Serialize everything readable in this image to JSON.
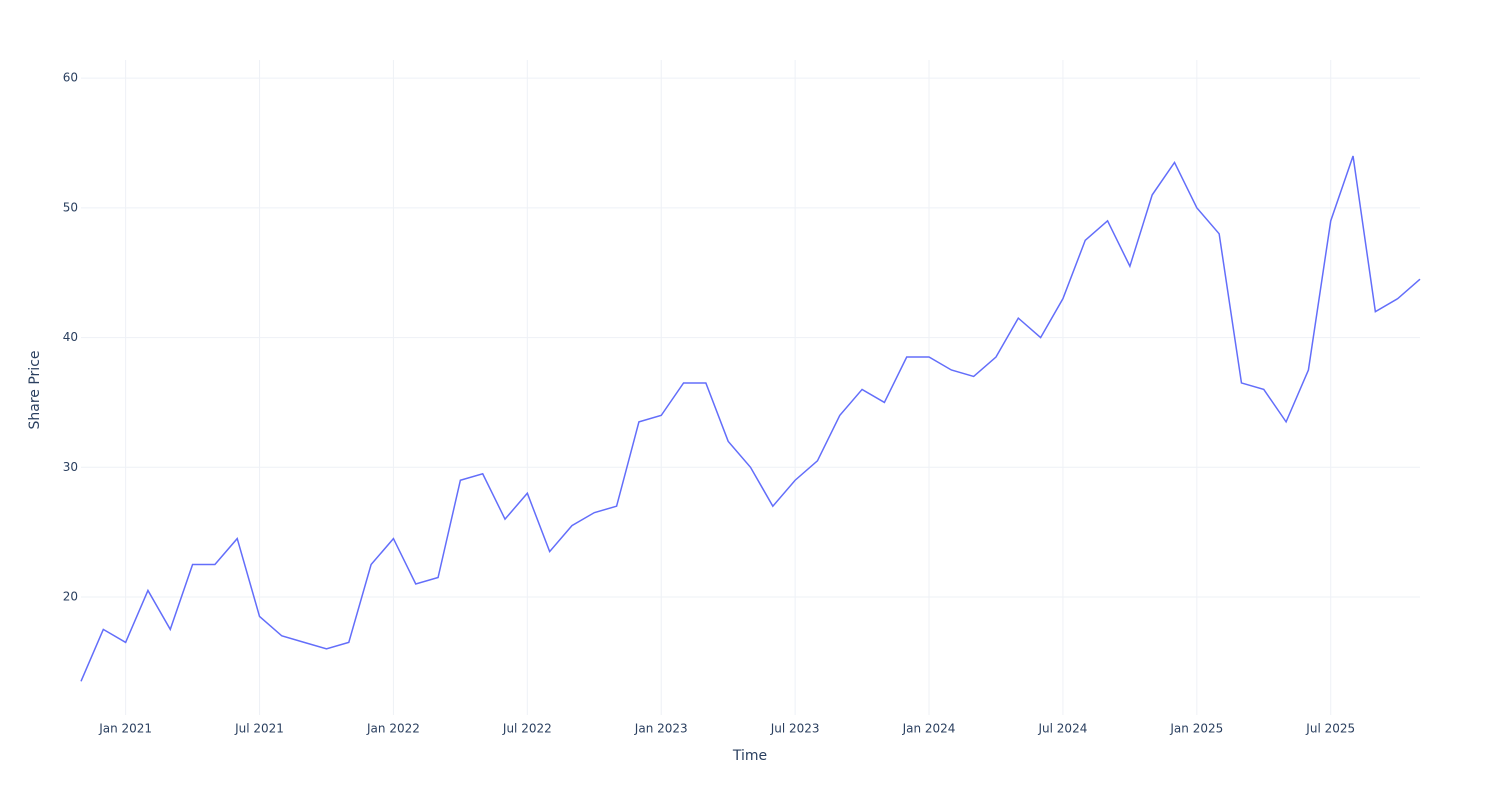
{
  "chart_data": {
    "type": "line",
    "x_label": "Time",
    "y_label": "Share Price",
    "x": [
      "2020-11",
      "2020-12",
      "2021-01",
      "2021-02",
      "2021-03",
      "2021-04",
      "2021-05",
      "2021-06",
      "2021-07",
      "2021-08",
      "2021-09",
      "2021-10",
      "2021-11",
      "2021-12",
      "2022-01",
      "2022-02",
      "2022-03",
      "2022-04",
      "2022-05",
      "2022-06",
      "2022-07",
      "2022-08",
      "2022-09",
      "2022-10",
      "2022-11",
      "2022-12",
      "2023-01",
      "2023-02",
      "2023-03",
      "2023-04",
      "2023-05",
      "2023-06",
      "2023-07",
      "2023-08",
      "2023-09",
      "2023-10",
      "2023-11",
      "2023-12",
      "2024-01",
      "2024-02",
      "2024-03",
      "2024-04",
      "2024-05",
      "2024-06",
      "2024-07",
      "2024-08",
      "2024-09",
      "2024-10",
      "2024-11",
      "2024-12",
      "2025-01",
      "2025-02",
      "2025-03",
      "2025-04",
      "2025-05",
      "2025-06",
      "2025-07",
      "2025-08",
      "2025-09",
      "2025-10",
      "2025-11"
    ],
    "series": [
      {
        "name": "Share Price",
        "color": "#636efa",
        "values": [
          13.5,
          17.5,
          16.5,
          20.5,
          17.5,
          22.5,
          22.5,
          24.5,
          18.5,
          17,
          16.5,
          16,
          16.5,
          22.5,
          24.5,
          21,
          21.5,
          29,
          29.5,
          26,
          28,
          23.5,
          25.5,
          26.5,
          27,
          33.5,
          34,
          36.5,
          36.5,
          32,
          30,
          27,
          29,
          30.5,
          34,
          36,
          35,
          38.5,
          38.5,
          37.5,
          37,
          38.5,
          41.5,
          40,
          43,
          47.5,
          49,
          45.5,
          51,
          53.5,
          50,
          48,
          36.5,
          36,
          33.5,
          37.5,
          49,
          54,
          42,
          43,
          44.5
        ]
      }
    ],
    "xlim": [
      "2020-11",
      "2025-11"
    ],
    "xticks": [
      {
        "value": "2021-01",
        "label": "Jan 2021"
      },
      {
        "value": "2021-07",
        "label": "Jul 2021"
      },
      {
        "value": "2022-01",
        "label": "Jan 2022"
      },
      {
        "value": "2022-07",
        "label": "Jul 2022"
      },
      {
        "value": "2023-01",
        "label": "Jan 2023"
      },
      {
        "value": "2023-07",
        "label": "Jul 2023"
      },
      {
        "value": "2024-01",
        "label": "Jan 2024"
      },
      {
        "value": "2024-07",
        "label": "Jul 2024"
      },
      {
        "value": "2025-01",
        "label": "Jan 2025"
      },
      {
        "value": "2025-07",
        "label": "Jul 2025"
      }
    ],
    "ylim": [
      10.9,
      61.4
    ],
    "yticks": [
      20,
      30,
      40,
      50,
      60
    ],
    "grid": true
  }
}
